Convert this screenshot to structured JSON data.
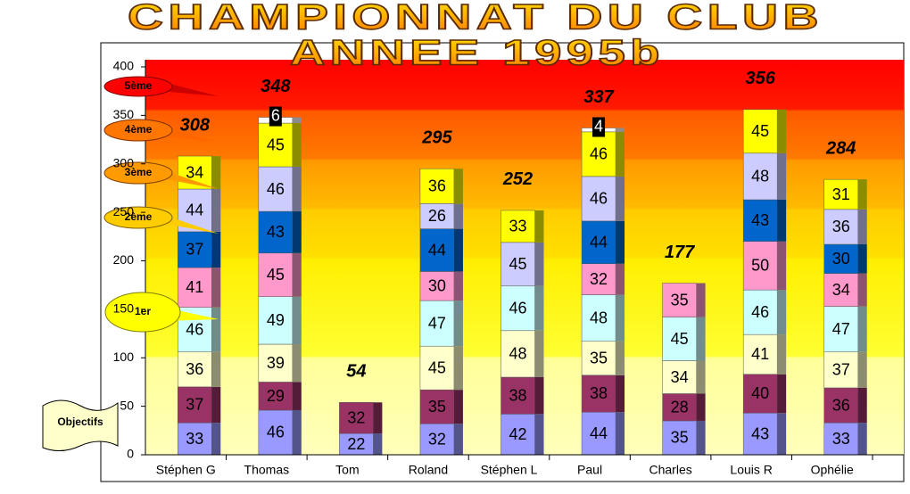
{
  "chart_data": {
    "type": "stacked_bar",
    "title": "CHAMPIONNAT DU CLUB",
    "subtitle": "ANNEE 1995b",
    "categories": [
      "Stéphen G",
      "Thomas",
      "Tom",
      "Roland",
      "Stéphen L",
      "Paul",
      "Charles",
      "Louis R",
      "Ophélie"
    ],
    "series": [
      {
        "color": "#9999ff",
        "values": [
          33,
          46,
          22,
          32,
          42,
          44,
          35,
          43,
          33
        ]
      },
      {
        "color": "#993366",
        "values": [
          37,
          29,
          32,
          35,
          38,
          38,
          28,
          40,
          36
        ]
      },
      {
        "color": "#ffffcc",
        "values": [
          36,
          39,
          null,
          45,
          48,
          35,
          34,
          41,
          37
        ]
      },
      {
        "color": "#ccffff",
        "values": [
          46,
          49,
          null,
          47,
          46,
          48,
          45,
          46,
          47
        ]
      },
      {
        "color": "#ff99cc",
        "values": [
          41,
          45,
          null,
          30,
          null,
          32,
          35,
          50,
          34
        ]
      },
      {
        "color": "#0066cc",
        "values": [
          37,
          43,
          null,
          44,
          null,
          44,
          null,
          43,
          30
        ]
      },
      {
        "color": "#ccccff",
        "values": [
          44,
          46,
          null,
          26,
          45,
          46,
          null,
          48,
          36
        ]
      },
      {
        "color": "#ffff00",
        "values": [
          34,
          45,
          null,
          36,
          33,
          46,
          null,
          45,
          31
        ]
      },
      {
        "color": "#ffffff",
        "label_color": "#ffffff",
        "label_background": "#000000",
        "values": [
          null,
          6,
          null,
          null,
          null,
          4,
          null,
          null,
          null
        ]
      }
    ],
    "total_labels": [
      308,
      348,
      54,
      295,
      252,
      337,
      177,
      356,
      284
    ],
    "ylim": [
      0,
      400
    ],
    "yticks": [
      0,
      50,
      100,
      150,
      200,
      250,
      300,
      350,
      400
    ],
    "annotations": [
      "5ème",
      "4ème",
      "3ème",
      "2ème",
      "1er",
      "Objectifs"
    ]
  }
}
